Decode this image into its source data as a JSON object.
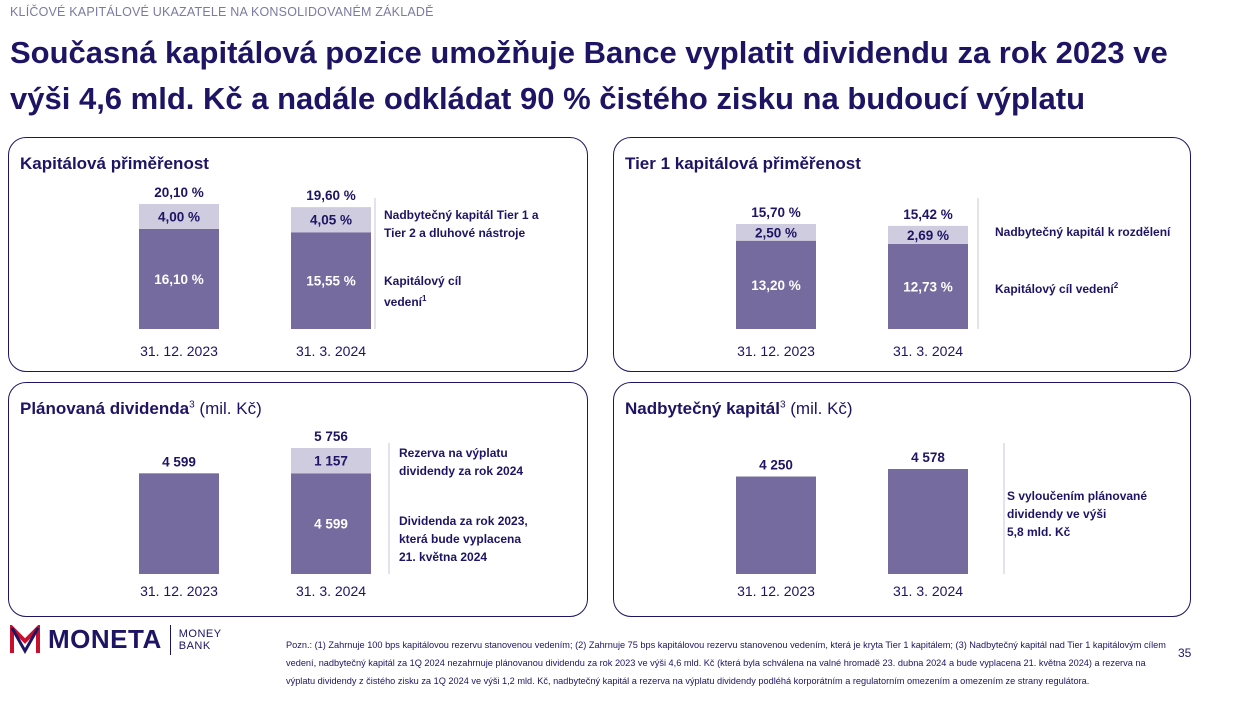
{
  "header": {
    "section_label": "KLÍČOVÉ KAPITÁLOVÉ UKAZATELE NA KONSOLIDOVANÉM ZÁKLADĚ",
    "headline": "Současná kapitálová pozice umožňuje Bance vyplatit dividendu za rok 2023 ve výši 4,6 mld. Kč a nadále odkládat 90 % čistého zisku na budoucí výplatu"
  },
  "colors": {
    "base": "#756b9e",
    "top": "#cfcce0",
    "dark": "#1e1464"
  },
  "chart_data": [
    {
      "type": "bar",
      "title": "Kapitálová přiměřenost",
      "categories": [
        "31. 12. 2023",
        "31. 3. 2024"
      ],
      "series": [
        {
          "values": [
            16.1,
            15.55
          ],
          "labels": [
            "16,10 %",
            "15,55 %"
          ]
        },
        {
          "values": [
            4.0,
            4.05
          ],
          "labels": [
            "4,00 %",
            "4,05 %"
          ]
        }
      ],
      "totals": [
        20.1,
        19.6
      ],
      "total_labels": [
        "20,10 %",
        "19,60 %"
      ],
      "annotations": [
        {
          "lines": [
            "Nadbytečný kapitál Tier 1 a",
            "Tier 2 a dluhové nástroje"
          ]
        },
        {
          "lines": [
            "Kapitálový cíl",
            "vedení"
          ],
          "sup": "1"
        }
      ]
    },
    {
      "type": "bar",
      "title": "Tier 1 kapitálová přiměřenost",
      "categories": [
        "31. 12. 2023",
        "31. 3. 2024"
      ],
      "series": [
        {
          "values": [
            13.2,
            12.73
          ],
          "labels": [
            "13,20 %",
            "12,73 %"
          ]
        },
        {
          "values": [
            2.5,
            2.69
          ],
          "labels": [
            "2,50 %",
            "2,69 %"
          ]
        }
      ],
      "totals": [
        15.7,
        15.42
      ],
      "total_labels": [
        "15,70 %",
        "15,42 %"
      ],
      "annotations": [
        {
          "lines": [
            "Nadbytečný kapitál k rozdělení"
          ]
        },
        {
          "lines": [
            "Kapitálový cíl vedení"
          ],
          "sup": "2"
        }
      ]
    },
    {
      "type": "bar",
      "title": "Plánovaná dividenda",
      "title_sup": "3",
      "title_unit": "(mil. Kč)",
      "categories": [
        "31. 12. 2023",
        "31. 3. 2024"
      ],
      "series": [
        {
          "values": [
            4599,
            4599
          ],
          "labels": [
            "",
            "4 599"
          ]
        },
        {
          "values": [
            0,
            1157
          ],
          "labels": [
            "",
            "1 157"
          ]
        }
      ],
      "totals": [
        4599,
        5756
      ],
      "total_labels": [
        "4 599",
        "5 756"
      ],
      "annotations": [
        {
          "lines": [
            "Rezerva na výplatu",
            "dividendy za rok 2024"
          ]
        },
        {
          "lines": [
            "Dividenda za rok 2023,",
            "která bude vyplacena",
            "21. května 2024"
          ]
        }
      ]
    },
    {
      "type": "bar",
      "title": "Nadbytečný kapitál",
      "title_sup": "3",
      "title_unit": "(mil. Kč)",
      "categories": [
        "31. 12. 2023",
        "31. 3. 2024"
      ],
      "series": [
        {
          "values": [
            4250,
            4578
          ],
          "labels": [
            "",
            ""
          ]
        }
      ],
      "totals": [
        4250,
        4578
      ],
      "total_labels": [
        "4 250",
        "4 578"
      ],
      "annotations": [
        {
          "lines": [
            "S vyloučením plánované",
            "dividendy ve výši",
            "5,8 mld. Kč"
          ]
        }
      ]
    }
  ],
  "logo": {
    "word": "MONETA",
    "sub1": "MONEY",
    "sub2": "BANK"
  },
  "footnote": "Pozn.: (1) Zahrnuje 100 bps kapitálovou rezervu stanovenou vedením; (2) Zahrnuje 75 bps kapitálovou rezervu stanovenou vedením, která je kryta Tier 1 kapitálem; (3) Nadbytečný kapitál nad Tier 1 kapitálovým cílem vedení, nadbytečný kapitál za 1Q 2024 nezahrnuje plánovanou dividendu za rok 2023 ve výši 4,6 mld. Kč (která byla schválena na valné hromadě 23. dubna 2024 a bude vyplacena 21. května 2024) a rezerva na výplatu dividendy z čistého zisku za 1Q 2024 ve výši 1,2 mld. Kč, nadbytečný kapitál a rezerva na výplatu dividendy podléhá korporátním a regulatorním omezením a omezením ze strany regulátora.",
  "page_number": "35"
}
